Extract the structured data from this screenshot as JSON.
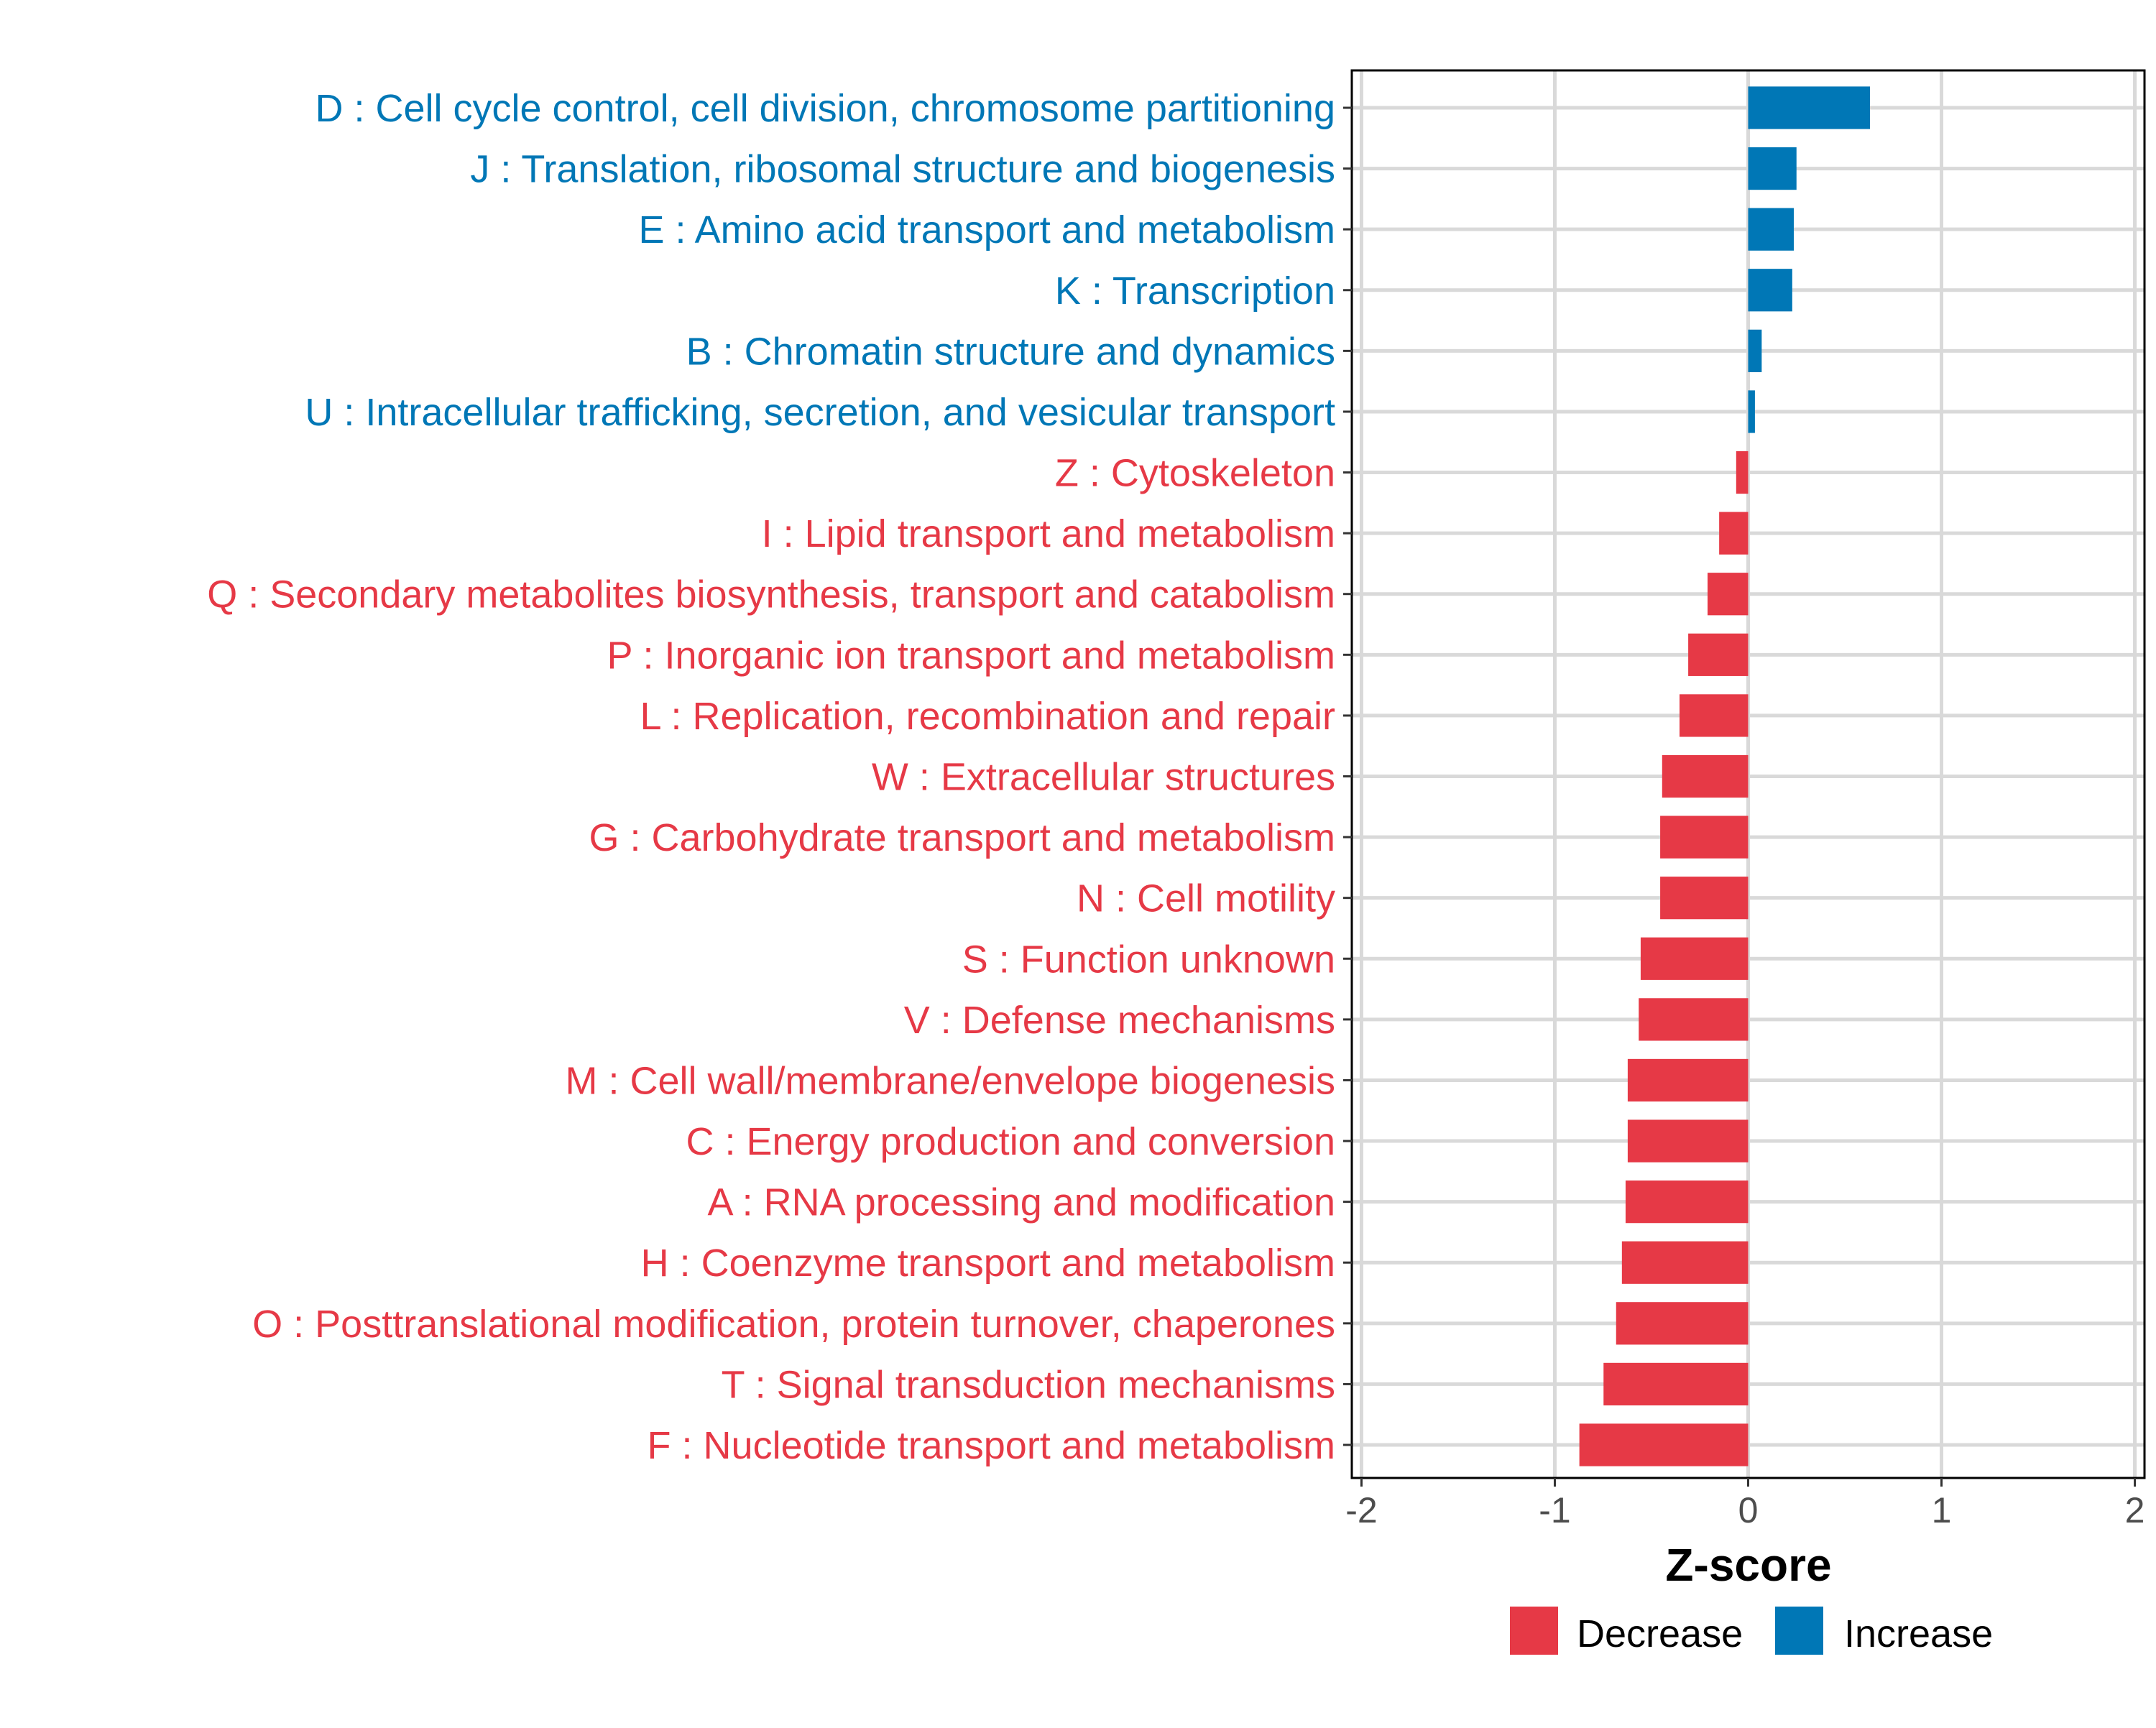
{
  "chart_data": {
    "type": "bar",
    "orientation": "horizontal",
    "xlabel": "Z-score",
    "ylabel": "",
    "xlim": [
      -2.05,
      2.05
    ],
    "xticks": [
      -2,
      -1,
      0,
      1,
      2
    ],
    "xtick_labels": [
      "-2",
      "-1",
      "0",
      "1",
      "2"
    ],
    "grid": true,
    "legend_position": "bottom",
    "legend": [
      {
        "label": "Decrease",
        "color": "#E63946"
      },
      {
        "label": "Increase",
        "color": "#0077B6"
      }
    ],
    "categories": [
      "D : Cell cycle control, cell division, chromosome partitioning",
      "J : Translation, ribosomal structure and biogenesis",
      "E : Amino acid transport and metabolism",
      "K : Transcription",
      "B : Chromatin structure and dynamics",
      "U : Intracellular trafficking, secretion, and vesicular transport",
      "Z : Cytoskeleton",
      "I : Lipid transport and metabolism",
      "Q : Secondary metabolites biosynthesis, transport and catabolism",
      "P : Inorganic ion transport and metabolism",
      "L : Replication, recombination and repair",
      "W : Extracellular structures",
      "G : Carbohydrate transport and metabolism",
      "N : Cell motility",
      "S : Function unknown",
      "V : Defense mechanisms",
      "M : Cell wall/membrane/envelope biogenesis",
      "C : Energy production and conversion",
      "A : RNA processing and modification",
      "H : Coenzyme transport and metabolism",
      "O : Posttranslational modification, protein turnover, chaperones",
      "T : Signal transduction mechanisms",
      "F : Nucleotide transport and metabolism"
    ],
    "values": [
      0.63,
      0.25,
      0.236,
      0.228,
      0.07,
      0.035,
      -0.062,
      -0.15,
      -0.21,
      -0.31,
      -0.355,
      -0.445,
      -0.455,
      -0.455,
      -0.556,
      -0.566,
      -0.623,
      -0.623,
      -0.634,
      -0.653,
      -0.683,
      -0.748,
      -0.873
    ]
  }
}
